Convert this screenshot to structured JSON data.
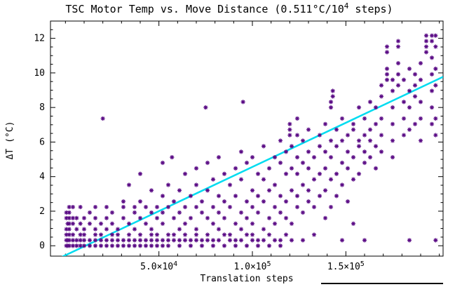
{
  "title": {
    "pre": "TSC Motor Temp vs. Move Distance (0.511°C/10",
    "exp": "4",
    "post": " steps)"
  },
  "chart_data": {
    "type": "scatter",
    "title": "TSC Motor Temp vs. Move Distance (0.511°C/10^4 steps)",
    "xlabel": "Translation steps",
    "ylabel": "ΔT (°C)",
    "xlim": [
      -8000,
      202000
    ],
    "ylim": [
      -0.6,
      13.0
    ],
    "grid": false,
    "legend": "none",
    "x_ticks": [
      {
        "value": 50000,
        "label": "5.0×10",
        "exp": "4"
      },
      {
        "value": 100000,
        "label": "1.0×10",
        "exp": "5"
      },
      {
        "value": 150000,
        "label": "1.5×10",
        "exp": "5"
      }
    ],
    "x_minor_step": 10000,
    "y_ticks": [
      0,
      2,
      4,
      6,
      8,
      10,
      12
    ],
    "y_minor_step": 0.5,
    "marker": "asterisk",
    "marker_color": "#5a0b85",
    "trend_line": {
      "color": "#00dcf0",
      "slope_degC_per_10k_steps": 0.511,
      "intercept_degC": -0.55
    },
    "columns": [
      [
        500,
        [
          0,
          0.32,
          0.64,
          0.96,
          1.6,
          1.92
        ]
      ],
      [
        1200,
        [
          0,
          0.32,
          1.28
        ]
      ],
      [
        2000,
        [
          0,
          0.32,
          0.64,
          0.96,
          1.28,
          1.6,
          1.92,
          2.24
        ]
      ],
      [
        4000,
        [
          0,
          0.32,
          0.64,
          1.28,
          1.6,
          2.24
        ]
      ],
      [
        6000,
        [
          0,
          0.32,
          0.96,
          1.6
        ]
      ],
      [
        8000,
        [
          0,
          0.32,
          0.64,
          1.28,
          2.24
        ]
      ],
      [
        10000,
        [
          0,
          0.32,
          0.64,
          0.96,
          1.6
        ]
      ],
      [
        13000,
        [
          0,
          0.32,
          1.28,
          1.92
        ]
      ],
      [
        16000,
        [
          0,
          0.32,
          0.64,
          0.96,
          1.6,
          2.24
        ]
      ],
      [
        19000,
        [
          0,
          0.32,
          0.64,
          1.28
        ]
      ],
      [
        20000,
        [
          7.36
        ]
      ],
      [
        22000,
        [
          0,
          0.32,
          0.96,
          1.6,
          2.24
        ]
      ],
      [
        25000,
        [
          0,
          0.32,
          0.64,
          1.28,
          1.92
        ]
      ],
      [
        28000,
        [
          0,
          0.32,
          0.64,
          0.96
        ]
      ],
      [
        31000,
        [
          0,
          0.32,
          1.6,
          2.24,
          2.56
        ]
      ],
      [
        34000,
        [
          0,
          0.32,
          0.64,
          1.28,
          3.52
        ]
      ],
      [
        37000,
        [
          0,
          0.32,
          0.96,
          1.92,
          2.24
        ]
      ],
      [
        40000,
        [
          0,
          0.32,
          0.64,
          1.6,
          2.56,
          4.16
        ]
      ],
      [
        43000,
        [
          0,
          0.32,
          1.28,
          2.24
        ]
      ],
      [
        46000,
        [
          0,
          0.32,
          0.64,
          0.96,
          1.92,
          3.2
        ]
      ],
      [
        49000,
        [
          0,
          0.32,
          0.64,
          1.6,
          2.24
        ]
      ],
      [
        52000,
        [
          0,
          0.32,
          1.28,
          1.92,
          2.88,
          4.8
        ]
      ],
      [
        55000,
        [
          0,
          0.32,
          0.64,
          2.24,
          3.52
        ]
      ],
      [
        57000,
        [
          5.12
        ]
      ],
      [
        58000,
        [
          0.32,
          0.64,
          1.6,
          2.56
        ]
      ],
      [
        61000,
        [
          0,
          0.32,
          0.96,
          1.92,
          3.2
        ]
      ],
      [
        64000,
        [
          0.32,
          0.64,
          1.28,
          2.24,
          4.16
        ]
      ],
      [
        67000,
        [
          0,
          0.32,
          1.6,
          2.88
        ]
      ],
      [
        70000,
        [
          0.32,
          0.64,
          0.96,
          2.24,
          3.52,
          4.48
        ]
      ],
      [
        73000,
        [
          0,
          0.32,
          1.92,
          2.56
        ]
      ],
      [
        75000,
        [
          8.0
        ]
      ],
      [
        76000,
        [
          0.32,
          0.64,
          1.6,
          3.2,
          4.8
        ]
      ],
      [
        79000,
        [
          0,
          0.32,
          1.28,
          2.24,
          3.84
        ]
      ],
      [
        82000,
        [
          0.32,
          0.96,
          1.92,
          2.88,
          5.12
        ]
      ],
      [
        85000,
        [
          0,
          0.64,
          1.6,
          2.56,
          4.16
        ]
      ],
      [
        88000,
        [
          0.32,
          0.64,
          2.24,
          3.52
        ]
      ],
      [
        91000,
        [
          0,
          0.32,
          1.28,
          2.88,
          4.48
        ]
      ],
      [
        94000,
        [
          0.32,
          0.96,
          1.92,
          3.84,
          5.44
        ]
      ],
      [
        95000,
        [
          8.32
        ]
      ],
      [
        97000,
        [
          0,
          0.64,
          1.6,
          2.56,
          4.8
        ]
      ],
      [
        100000,
        [
          0.32,
          0.64,
          1.28,
          2.24,
          3.2,
          5.12
        ]
      ],
      [
        103000,
        [
          0,
          0.32,
          1.92,
          2.88,
          4.16
        ]
      ],
      [
        106000,
        [
          0.32,
          0.96,
          2.56,
          3.84,
          5.76
        ]
      ],
      [
        109000,
        [
          0,
          0.64,
          1.6,
          3.2,
          4.48
        ]
      ],
      [
        112000,
        [
          0.32,
          1.28,
          2.24,
          3.52,
          5.12
        ]
      ],
      [
        115000,
        [
          0,
          0.32,
          1.92,
          2.88,
          4.8,
          6.08
        ]
      ],
      [
        118000,
        [
          0.64,
          1.6,
          2.56,
          4.16,
          5.44
        ]
      ],
      [
        120000,
        [
          6.4,
          6.72,
          7.04
        ]
      ],
      [
        121000,
        [
          0.32,
          1.28,
          3.2,
          4.48,
          5.76
        ]
      ],
      [
        124000,
        [
          2.24,
          2.88,
          4.16,
          5.12,
          6.4,
          7.36
        ]
      ],
      [
        127000,
        [
          0.32,
          1.92,
          3.52,
          4.8,
          6.08
        ]
      ],
      [
        130000,
        [
          2.56,
          3.2,
          4.48,
          5.44,
          6.72
        ]
      ],
      [
        133000,
        [
          0.64,
          2.24,
          3.84,
          5.12
        ]
      ],
      [
        136000,
        [
          2.88,
          4.16,
          5.76,
          6.4
        ]
      ],
      [
        139000,
        [
          1.6,
          3.2,
          4.48,
          5.44,
          7.04
        ]
      ],
      [
        142000,
        [
          2.24,
          3.84,
          5.12,
          6.08,
          8.0,
          8.32
        ]
      ],
      [
        143000,
        [
          8.64,
          8.96
        ]
      ],
      [
        145000,
        [
          2.88,
          4.16,
          5.76,
          6.72
        ]
      ],
      [
        148000,
        [
          0.32,
          3.52,
          4.8,
          6.08,
          7.36
        ]
      ],
      [
        151000,
        [
          2.56,
          4.48,
          5.44,
          6.4
        ]
      ],
      [
        154000,
        [
          1.28,
          3.84,
          5.12,
          6.72,
          7.04
        ]
      ],
      [
        157000,
        [
          4.16,
          5.76,
          6.08,
          8.0
        ]
      ],
      [
        160000,
        [
          0.32,
          4.8,
          5.44,
          6.4,
          7.36
        ]
      ],
      [
        163000,
        [
          5.12,
          6.08,
          6.72,
          8.32
        ]
      ],
      [
        166000,
        [
          4.48,
          5.76,
          7.04,
          8.0
        ]
      ],
      [
        169000,
        [
          5.44,
          6.4,
          7.36,
          8.64,
          9.28
        ]
      ],
      [
        172000,
        [
          9.6,
          9.92,
          10.24,
          11.2,
          11.52
        ]
      ],
      [
        175000,
        [
          5.12,
          6.08,
          7.04,
          8.0,
          8.96,
          9.6
        ]
      ],
      [
        178000,
        [
          9.28,
          9.92,
          10.56,
          11.52,
          11.84
        ]
      ],
      [
        181000,
        [
          6.4,
          7.36,
          8.32,
          9.6
        ]
      ],
      [
        184000,
        [
          0.32,
          6.72,
          8.0,
          8.96,
          10.24
        ]
      ],
      [
        187000,
        [
          7.04,
          8.64,
          9.28,
          9.92
        ]
      ],
      [
        190000,
        [
          6.08,
          7.36,
          8.32,
          9.6,
          10.56
        ]
      ],
      [
        193000,
        [
          11.2,
          11.52,
          11.84,
          12.16
        ]
      ],
      [
        196000,
        [
          7.04,
          8.0,
          8.96,
          9.92,
          10.88,
          11.84,
          12.16
        ]
      ],
      [
        198000,
        [
          0.32,
          6.4,
          7.36,
          9.28,
          10.24,
          11.52,
          12.16
        ]
      ]
    ]
  },
  "decorations": {
    "bottom_rule_color": "#000000"
  }
}
